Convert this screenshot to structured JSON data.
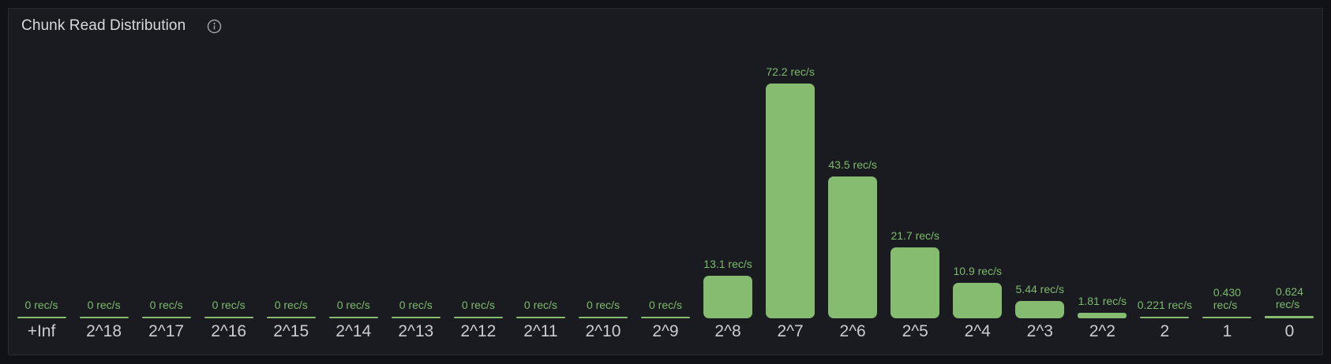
{
  "panel": {
    "title": "Chunk Read Distribution"
  },
  "colors": {
    "page_background": "#111217",
    "panel_background": "#1A1B20",
    "panel_border": "#292B31",
    "bar_fill": "#86BC70",
    "value_text": "#7CBA6B",
    "category_text": "#CBCCD3",
    "title_text": "#D8D9DB",
    "icon_color": "#9DA0A6"
  },
  "chart_data": {
    "type": "bar",
    "title": "Chunk Read Distribution",
    "unit": "rec/s",
    "orientation": "vertical",
    "grid": false,
    "legend": false,
    "axes_hidden": true,
    "xlabel": "",
    "ylabel": "",
    "ylim": [
      0,
      95.5
    ],
    "categories": [
      "+Inf",
      "2^18",
      "2^17",
      "2^16",
      "2^15",
      "2^14",
      "2^13",
      "2^12",
      "2^11",
      "2^10",
      "2^9",
      "2^8",
      "2^7",
      "2^6",
      "2^5",
      "2^4",
      "2^3",
      "2^2",
      "2",
      "1",
      "0"
    ],
    "values": [
      0,
      0,
      0,
      0,
      0,
      0,
      0,
      0,
      0,
      0,
      0,
      13.1,
      72.2,
      43.5,
      21.7,
      10.9,
      5.44,
      1.81,
      0.221,
      0.43,
      0.624
    ],
    "value_labels": [
      [
        "0 rec/s"
      ],
      [
        "0 rec/s"
      ],
      [
        "0 rec/s"
      ],
      [
        "0 rec/s"
      ],
      [
        "0 rec/s"
      ],
      [
        "0 rec/s"
      ],
      [
        "0 rec/s"
      ],
      [
        "0 rec/s"
      ],
      [
        "0 rec/s"
      ],
      [
        "0 rec/s"
      ],
      [
        "0 rec/s"
      ],
      [
        "13.1 rec/s"
      ],
      [
        "72.2 rec/s"
      ],
      [
        "43.5 rec/s"
      ],
      [
        "21.7 rec/s"
      ],
      [
        "10.9 rec/s"
      ],
      [
        "5.44 rec/s"
      ],
      [
        "1.81 rec/s"
      ],
      [
        "0.221 rec/s"
      ],
      [
        "0.430",
        "rec/s"
      ],
      [
        "0.624",
        "rec/s"
      ]
    ]
  }
}
